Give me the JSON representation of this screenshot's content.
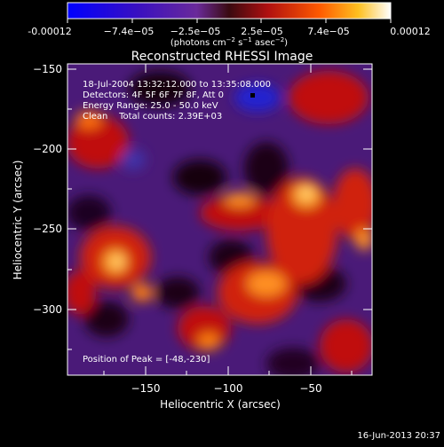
{
  "colorbar": {
    "ticks": [
      "-0.00012",
      "−7.4e−05",
      "−2.5e−05",
      "2.5e−05",
      "7.4e−05",
      "0.00012"
    ],
    "units_main": "(photons cm",
    "units_sup1": "−2",
    "units_mid": " s",
    "units_sup2": "−1",
    "units_tail": " asec",
    "units_sup3": "−2",
    "units_close": ")"
  },
  "title": "Reconstructed RHESSI Image",
  "annotations": {
    "time_range": "18-Jul-2004 13:32:12.000 to 13:35:08.000",
    "detectors": "Detectors: 4F 5F 6F 7F 8F, Att 0",
    "energy_range": "Energy Range: 25.0 - 50.0 keV",
    "clean_total": "Clean    Total counts: 2.39E+03",
    "peak": "Position of Peak = [-48,-230]"
  },
  "axes": {
    "xlabel": "Heliocentric X (arcsec)",
    "ylabel": "Heliocentric Y (arcsec)",
    "xticks": [
      "−150",
      "−100",
      "−50"
    ],
    "yticks": [
      "−150",
      "−200",
      "−250",
      "−300"
    ]
  },
  "footer_date": "16-Jun-2013 20:37"
}
